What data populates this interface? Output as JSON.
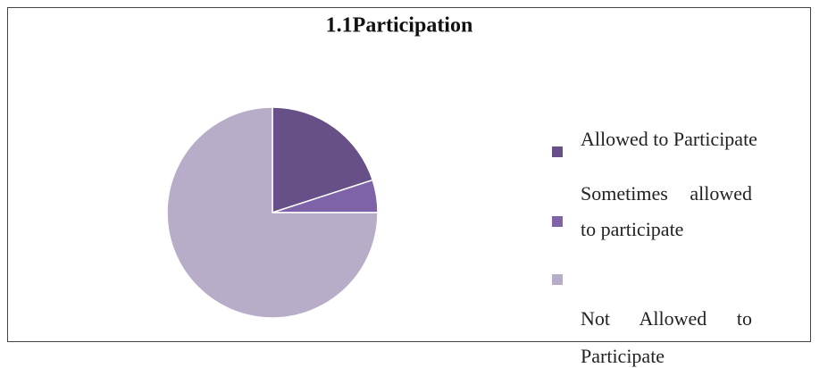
{
  "chart_data": {
    "type": "pie",
    "title": "1.1Participation",
    "categories": [
      "Allowed to Participate",
      "Sometimes allowed to participate",
      "Not Allowed to Participate"
    ],
    "values": [
      20,
      5,
      75
    ],
    "colors": [
      "#674f87",
      "#7f63a8",
      "#b8adc9"
    ],
    "legend": "right"
  }
}
